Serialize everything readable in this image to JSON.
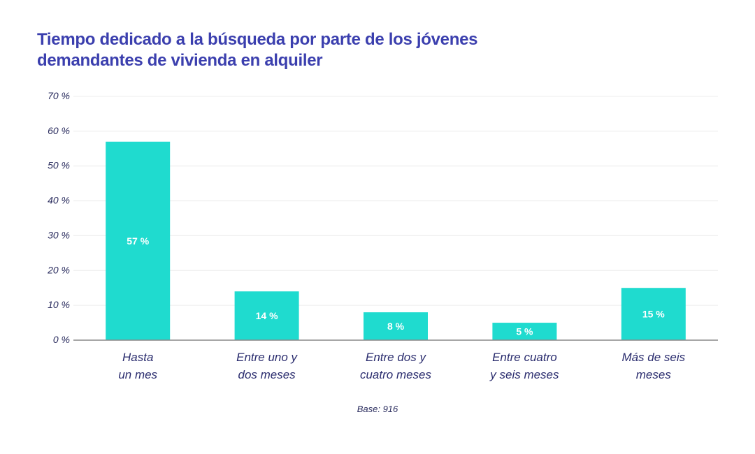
{
  "chart_data": {
    "type": "bar",
    "title": "Tiempo dedicado a la búsqueda por parte de los jóvenes demandantes de vivienda en alquiler",
    "categories": [
      [
        "Hasta",
        "un mes"
      ],
      [
        "Entre uno y",
        "dos meses"
      ],
      [
        "Entre dos y",
        "cuatro meses"
      ],
      [
        "Entre cuatro",
        "y seis meses"
      ],
      [
        "Más de seis",
        "meses"
      ]
    ],
    "values": [
      57,
      14,
      8,
      5,
      15
    ],
    "data_labels": [
      "57 %",
      "14 %",
      "8 %",
      "5 %",
      "15 %"
    ],
    "ylim": [
      0,
      70
    ],
    "yticks": [
      "0 %",
      "10 %",
      "20 %",
      "30 %",
      "40 %",
      "50 %",
      "60 %",
      "70 %"
    ],
    "xlabel": "",
    "ylabel": "",
    "grid": true,
    "bar_color": "#1fdbcf",
    "footnote": "Base: 916"
  }
}
